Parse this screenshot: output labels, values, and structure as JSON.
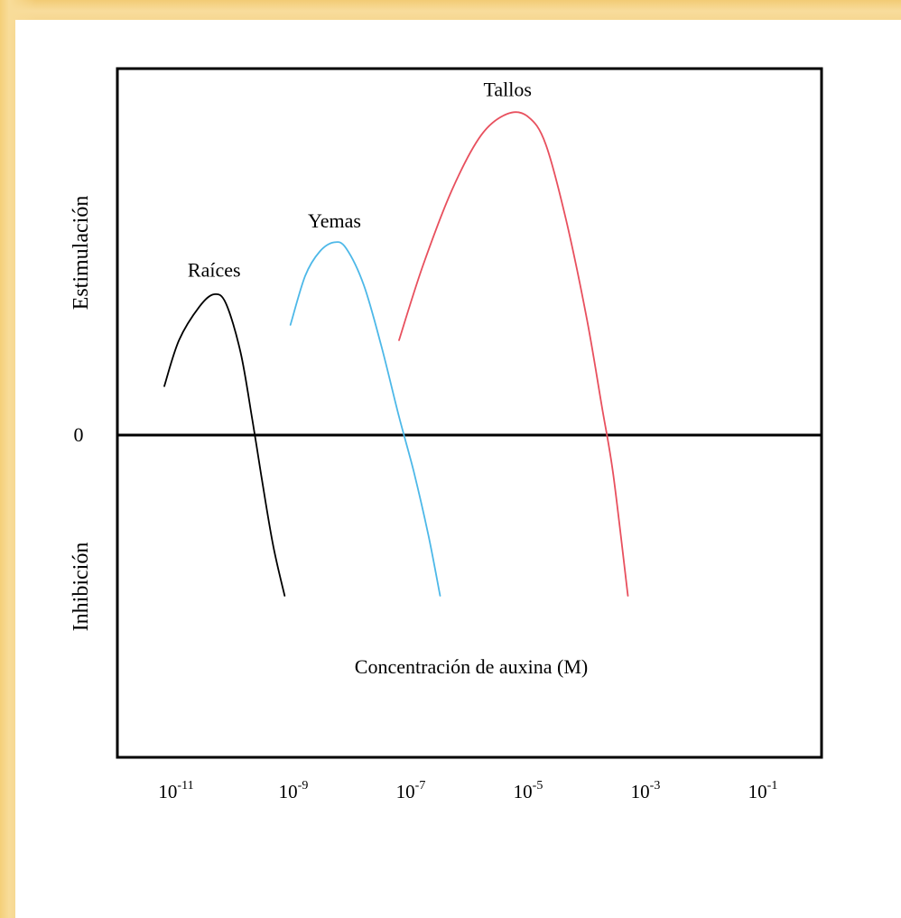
{
  "colors": {
    "background": "#f3cf7e",
    "panel": "#ffffff",
    "frame": "#000000",
    "raices": "#000000",
    "yemas": "#4db8e8",
    "tallos": "#e8505e"
  },
  "chart_data": {
    "type": "line",
    "title": "",
    "xlabel": "Concentración de auxina (M)",
    "ylabel_top": "Estimulación",
    "ylabel_bottom": "Inhibición",
    "zero_label": "0",
    "x_scale": "log10",
    "xlim_log10": [
      -12,
      0
    ],
    "ylim": [
      -1,
      1.15
    ],
    "x_ticks": [
      {
        "exp": -11,
        "base": "10",
        "sup": "-11"
      },
      {
        "exp": -9,
        "base": "10",
        "sup": "-9"
      },
      {
        "exp": -7,
        "base": "10",
        "sup": "-7"
      },
      {
        "exp": -5,
        "base": "10",
        "sup": "-5"
      },
      {
        "exp": -3,
        "base": "10",
        "sup": "-3"
      },
      {
        "exp": -1,
        "base": "10",
        "sup": "-1"
      }
    ],
    "series": [
      {
        "name": "Raíces",
        "color": "#000000",
        "points": [
          [
            -11.2,
            0.16
          ],
          [
            -10.95,
            0.31
          ],
          [
            -10.6,
            0.42
          ],
          [
            -10.35,
            0.46
          ],
          [
            -10.15,
            0.43
          ],
          [
            -9.9,
            0.27
          ],
          [
            -9.7,
            0.05
          ],
          [
            -9.55,
            -0.13
          ],
          [
            -9.35,
            -0.36
          ],
          [
            -9.15,
            -0.53
          ]
        ]
      },
      {
        "name": "Yemas",
        "color": "#4db8e8",
        "points": [
          [
            -9.05,
            0.36
          ],
          [
            -8.8,
            0.52
          ],
          [
            -8.55,
            0.6
          ],
          [
            -8.3,
            0.63
          ],
          [
            -8.1,
            0.61
          ],
          [
            -7.8,
            0.49
          ],
          [
            -7.5,
            0.29
          ],
          [
            -7.2,
            0.06
          ],
          [
            -6.95,
            -0.12
          ],
          [
            -6.7,
            -0.33
          ],
          [
            -6.5,
            -0.53
          ]
        ]
      },
      {
        "name": "Tallos",
        "color": "#e8505e",
        "points": [
          [
            -7.2,
            0.31
          ],
          [
            -6.8,
            0.55
          ],
          [
            -6.3,
            0.8
          ],
          [
            -5.8,
            0.98
          ],
          [
            -5.35,
            1.05
          ],
          [
            -5.0,
            1.04
          ],
          [
            -4.7,
            0.95
          ],
          [
            -4.35,
            0.7
          ],
          [
            -4.0,
            0.38
          ],
          [
            -3.75,
            0.1
          ],
          [
            -3.55,
            -0.13
          ],
          [
            -3.3,
            -0.53
          ]
        ]
      }
    ],
    "annotations": [
      {
        "text": "Raíces",
        "x_log": -10.35,
        "y": 0.5
      },
      {
        "text": "Yemas",
        "x_log": -8.3,
        "y": 0.66
      },
      {
        "text": "Tallos",
        "x_log": -5.35,
        "y": 1.09
      }
    ],
    "legend": "none",
    "grid": false
  }
}
